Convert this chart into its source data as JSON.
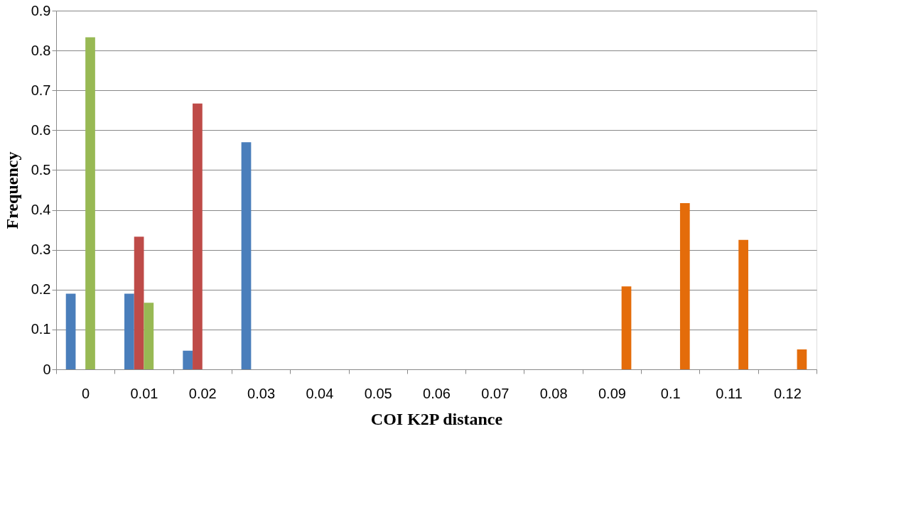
{
  "chart_data": {
    "type": "bar",
    "xlabel": "COI K2P distance",
    "ylabel": "Frequency",
    "categories": [
      "0",
      "0.01",
      "0.02",
      "0.03",
      "0.04",
      "0.05",
      "0.06",
      "0.07",
      "0.08",
      "0.09",
      "0.1",
      "0.11",
      "0.12"
    ],
    "series": [
      {
        "color": "#4a7ebb",
        "values": [
          0.19,
          0.19,
          0.047,
          0.57,
          0,
          0,
          0,
          0,
          0,
          0,
          0,
          0,
          0
        ]
      },
      {
        "color": "#be4b48",
        "values": [
          0,
          0.333,
          0.667,
          0,
          0,
          0,
          0,
          0,
          0,
          0,
          0,
          0,
          0
        ]
      },
      {
        "color": "#98b954",
        "values": [
          0.833,
          0.167,
          0,
          0,
          0,
          0,
          0,
          0,
          0,
          0,
          0,
          0,
          0
        ]
      },
      {
        "color": "#e46c0a",
        "values": [
          0,
          0,
          0,
          0,
          0,
          0,
          0,
          0,
          0,
          0.208,
          0.417,
          0.325,
          0.05
        ]
      }
    ],
    "ylim": [
      0,
      0.9
    ],
    "yticks": [
      0,
      0.1,
      0.2,
      0.3,
      0.4,
      0.5,
      0.6,
      0.7,
      0.8,
      0.9
    ],
    "grid": "y",
    "legend": false
  }
}
